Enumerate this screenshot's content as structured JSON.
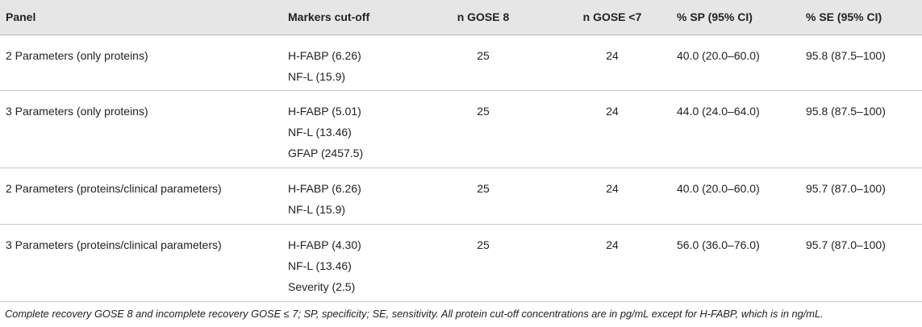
{
  "table": {
    "headers": [
      "Panel",
      "Markers cut-off",
      "n GOSE 8",
      "n GOSE <7",
      "% SP (95% CI)",
      "% SE (95% CI)"
    ],
    "rows": [
      {
        "panel": "2 Parameters (only proteins)",
        "markers": [
          "H-FABP (6.26)",
          "NF-L (15.9)"
        ],
        "n_gose8": "25",
        "n_gose7": "24",
        "sp": "40.0 (20.0–60.0)",
        "se": "95.8 (87.5–100)"
      },
      {
        "panel": "3 Parameters (only proteins)",
        "markers": [
          "H-FABP (5.01)",
          "NF-L (13.46)",
          "GFAP (2457.5)"
        ],
        "n_gose8": "25",
        "n_gose7": "24",
        "sp": "44.0 (24.0–64.0)",
        "se": "95.8 (87.5–100)"
      },
      {
        "panel": "2 Parameters (proteins/clinical parameters)",
        "markers": [
          "H-FABP (6.26)",
          "NF-L (15.9)"
        ],
        "n_gose8": "25",
        "n_gose7": "24",
        "sp": "40.0 (20.0–60.0)",
        "se": "95.7 (87.0–100)"
      },
      {
        "panel": "3 Parameters (proteins/clinical parameters)",
        "markers": [
          "H-FABP (4.30)",
          "NF-L (13.46)",
          "Severity (2.5)"
        ],
        "n_gose8": "25",
        "n_gose7": "24",
        "sp": "56.0 (36.0–76.0)",
        "se": "95.7 (87.0–100)"
      }
    ]
  },
  "footnote": "Complete recovery GOSE 8 and incomplete recovery GOSE ≤ 7; SP, specificity; SE, sensitivity. All protein cut-off concentrations are in pg/mL except for H-FABP, which is in ng/mL."
}
